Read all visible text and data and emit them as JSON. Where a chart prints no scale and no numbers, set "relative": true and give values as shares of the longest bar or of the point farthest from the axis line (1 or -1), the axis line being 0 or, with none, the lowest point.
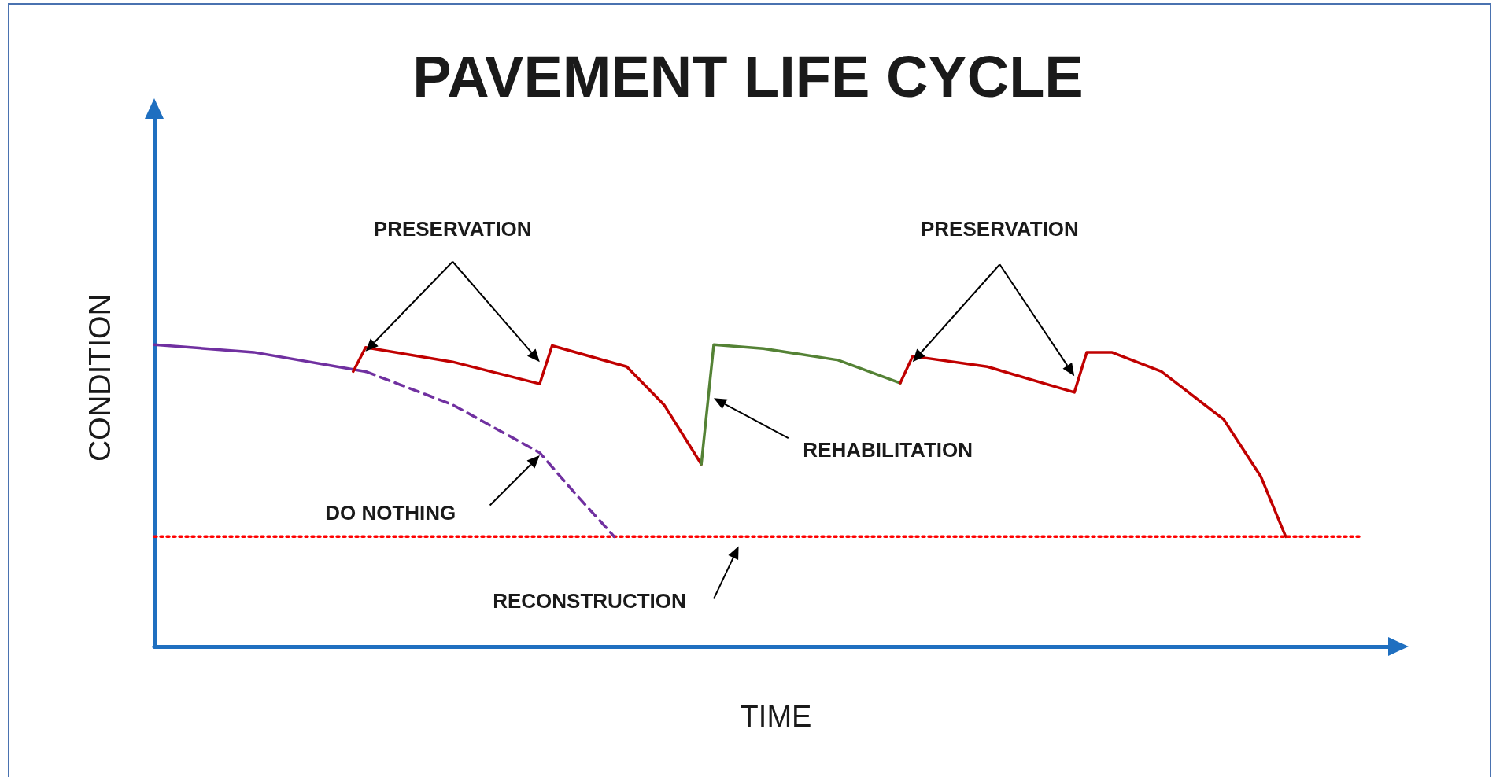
{
  "chart_data": {
    "type": "line",
    "title": "PAVEMENT LIFE CYCLE",
    "xlabel": "TIME",
    "ylabel": "CONDITION",
    "relative": true,
    "grid": false,
    "marker": "none",
    "categories": [
      null,
      null,
      null,
      null,
      null,
      null,
      null,
      null,
      null,
      null,
      null,
      null,
      null,
      null,
      null,
      null,
      null,
      null,
      null,
      null,
      null,
      null,
      null,
      null,
      null,
      null,
      null,
      null,
      null,
      null,
      null,
      null,
      null,
      null,
      null,
      null,
      null,
      null,
      null,
      null,
      null,
      null,
      null,
      null,
      null,
      null,
      null,
      null,
      null,
      null,
      null,
      null,
      null,
      null,
      null,
      null,
      null,
      null,
      null,
      null,
      null,
      null,
      null,
      null,
      null,
      null,
      null,
      null,
      null,
      null,
      null,
      null,
      null,
      null,
      null,
      null,
      null,
      null,
      null,
      null,
      null,
      null,
      null,
      null,
      null,
      null,
      null,
      null,
      null,
      null,
      null,
      null,
      null,
      null,
      null,
      null,
      null,
      null,
      null,
      null,
      null
    ],
    "series": [
      {
        "color": "#7030a0",
        "line_style": "solid",
        "values": [
          1,
          null,
          null,
          null,
          null,
          null,
          null,
          null,
          0.975,
          null,
          null,
          null,
          null,
          null,
          null,
          null,
          null,
          0.911,
          null,
          null,
          null,
          null,
          null,
          null,
          null,
          null,
          null,
          null,
          null,
          null,
          null,
          null,
          null,
          null,
          null,
          null,
          null,
          null,
          null,
          null,
          null,
          null,
          null,
          null,
          null,
          null,
          null,
          null,
          null,
          null,
          null,
          null,
          null,
          null,
          null,
          null,
          null,
          null,
          null,
          null,
          null,
          null,
          null,
          null,
          null,
          null,
          null,
          null,
          null,
          null,
          null,
          null,
          null,
          null,
          null,
          null,
          null,
          null,
          null,
          null,
          null,
          null,
          null,
          null,
          null,
          null,
          null,
          null,
          null,
          null,
          null,
          null,
          null,
          null,
          null,
          null,
          null,
          null,
          null,
          null,
          null
        ]
      },
      {
        "color": "#7030a0",
        "line_style": "dashed",
        "values": [
          null,
          null,
          null,
          null,
          null,
          null,
          null,
          null,
          null,
          null,
          null,
          null,
          null,
          null,
          null,
          null,
          null,
          0.911,
          null,
          null,
          null,
          null,
          null,
          null,
          0.801,
          null,
          null,
          null,
          null,
          null,
          null,
          0.642,
          null,
          null,
          0.5,
          null,
          null,
          0.364,
          null,
          null,
          null,
          null,
          null,
          null,
          null,
          null,
          null,
          null,
          null,
          null,
          null,
          null,
          null,
          null,
          null,
          null,
          null,
          null,
          null,
          null,
          null,
          null,
          null,
          null,
          null,
          null,
          null,
          null,
          null,
          null,
          null,
          null,
          null,
          null,
          null,
          null,
          null,
          null,
          null,
          null,
          null,
          null,
          null,
          null,
          null,
          null,
          null,
          null,
          null,
          null,
          null,
          null,
          null,
          null,
          null,
          null,
          null,
          null,
          null,
          null,
          null
        ]
      },
      {
        "color": "#c00000",
        "line_style": "solid",
        "values": [
          null,
          null,
          null,
          null,
          null,
          null,
          null,
          null,
          null,
          null,
          null,
          null,
          null,
          null,
          null,
          null,
          0.911,
          0.991,
          null,
          null,
          null,
          null,
          null,
          null,
          0.943,
          null,
          null,
          null,
          null,
          null,
          null,
          0.87,
          0.997,
          null,
          null,
          null,
          null,
          null,
          0.927,
          null,
          null,
          0.801,
          null,
          null,
          0.604,
          null,
          null,
          null,
          null,
          null,
          null,
          null,
          null,
          null,
          null,
          null,
          null,
          null,
          null,
          null,
          null,
          null,
          null,
          null,
          null,
          null,
          null,
          null,
          null,
          null,
          null,
          null,
          null,
          null,
          null,
          null,
          null,
          null,
          null,
          null,
          null,
          null,
          null,
          null,
          null,
          null,
          null,
          null,
          null,
          null,
          null,
          null,
          null,
          null,
          null,
          null,
          null,
          null,
          null,
          null,
          null
        ]
      },
      {
        "color": "#548235",
        "line_style": "solid",
        "values": [
          null,
          null,
          null,
          null,
          null,
          null,
          null,
          null,
          null,
          null,
          null,
          null,
          null,
          null,
          null,
          null,
          null,
          null,
          null,
          null,
          null,
          null,
          null,
          null,
          null,
          null,
          null,
          null,
          null,
          null,
          null,
          null,
          null,
          null,
          null,
          null,
          null,
          null,
          null,
          null,
          null,
          null,
          null,
          null,
          0.604,
          1,
          null,
          null,
          null,
          0.987,
          null,
          null,
          null,
          null,
          null,
          0.949,
          null,
          null,
          null,
          null,
          0.873,
          null,
          null,
          null,
          null,
          null,
          null,
          null,
          null,
          null,
          null,
          null,
          null,
          null,
          null,
          null,
          null,
          null,
          null,
          null,
          null,
          null,
          null,
          null,
          null,
          null,
          null,
          null,
          null,
          null,
          null,
          null,
          null,
          null,
          null,
          null,
          null,
          null,
          null,
          null,
          null
        ]
      },
      {
        "color": "#c00000",
        "line_style": "solid",
        "values": [
          null,
          null,
          null,
          null,
          null,
          null,
          null,
          null,
          null,
          null,
          null,
          null,
          null,
          null,
          null,
          null,
          null,
          null,
          null,
          null,
          null,
          null,
          null,
          null,
          null,
          null,
          null,
          null,
          null,
          null,
          null,
          null,
          null,
          null,
          null,
          null,
          null,
          null,
          null,
          null,
          null,
          null,
          null,
          null,
          null,
          null,
          null,
          null,
          null,
          null,
          null,
          null,
          null,
          null,
          null,
          null,
          null,
          null,
          null,
          null,
          0.873,
          0.962,
          null,
          null,
          null,
          null,
          null,
          0.927,
          null,
          null,
          null,
          null,
          null,
          null,
          0.842,
          0.975,
          null,
          0.975,
          null,
          null,
          null,
          0.911,
          null,
          null,
          null,
          null,
          0.753,
          null,
          null,
          0.563,
          null,
          0.364,
          null,
          null,
          null,
          null,
          null,
          null,
          null,
          null,
          null
        ]
      },
      {
        "color": "#ff0000",
        "line_style": "dotted",
        "values": [
          0.364,
          null,
          null,
          null,
          null,
          null,
          null,
          null,
          null,
          null,
          null,
          null,
          null,
          null,
          null,
          null,
          null,
          null,
          null,
          null,
          null,
          null,
          null,
          null,
          null,
          null,
          null,
          null,
          null,
          null,
          null,
          null,
          null,
          null,
          null,
          null,
          null,
          null,
          null,
          null,
          null,
          null,
          null,
          null,
          null,
          null,
          null,
          null,
          null,
          null,
          null,
          null,
          null,
          null,
          null,
          null,
          null,
          null,
          null,
          null,
          null,
          null,
          null,
          null,
          null,
          null,
          null,
          null,
          null,
          null,
          null,
          null,
          null,
          null,
          null,
          null,
          null,
          null,
          null,
          null,
          null,
          null,
          null,
          null,
          null,
          null,
          null,
          null,
          null,
          null,
          null,
          null,
          null,
          null,
          null,
          null,
          null,
          0.364,
          null,
          null,
          null
        ]
      }
    ],
    "annotations": [
      "PRESERVATION",
      "PRESERVATION",
      "REHABILITATION",
      "DO NOTHING",
      "RECONSTRUCTION"
    ]
  }
}
